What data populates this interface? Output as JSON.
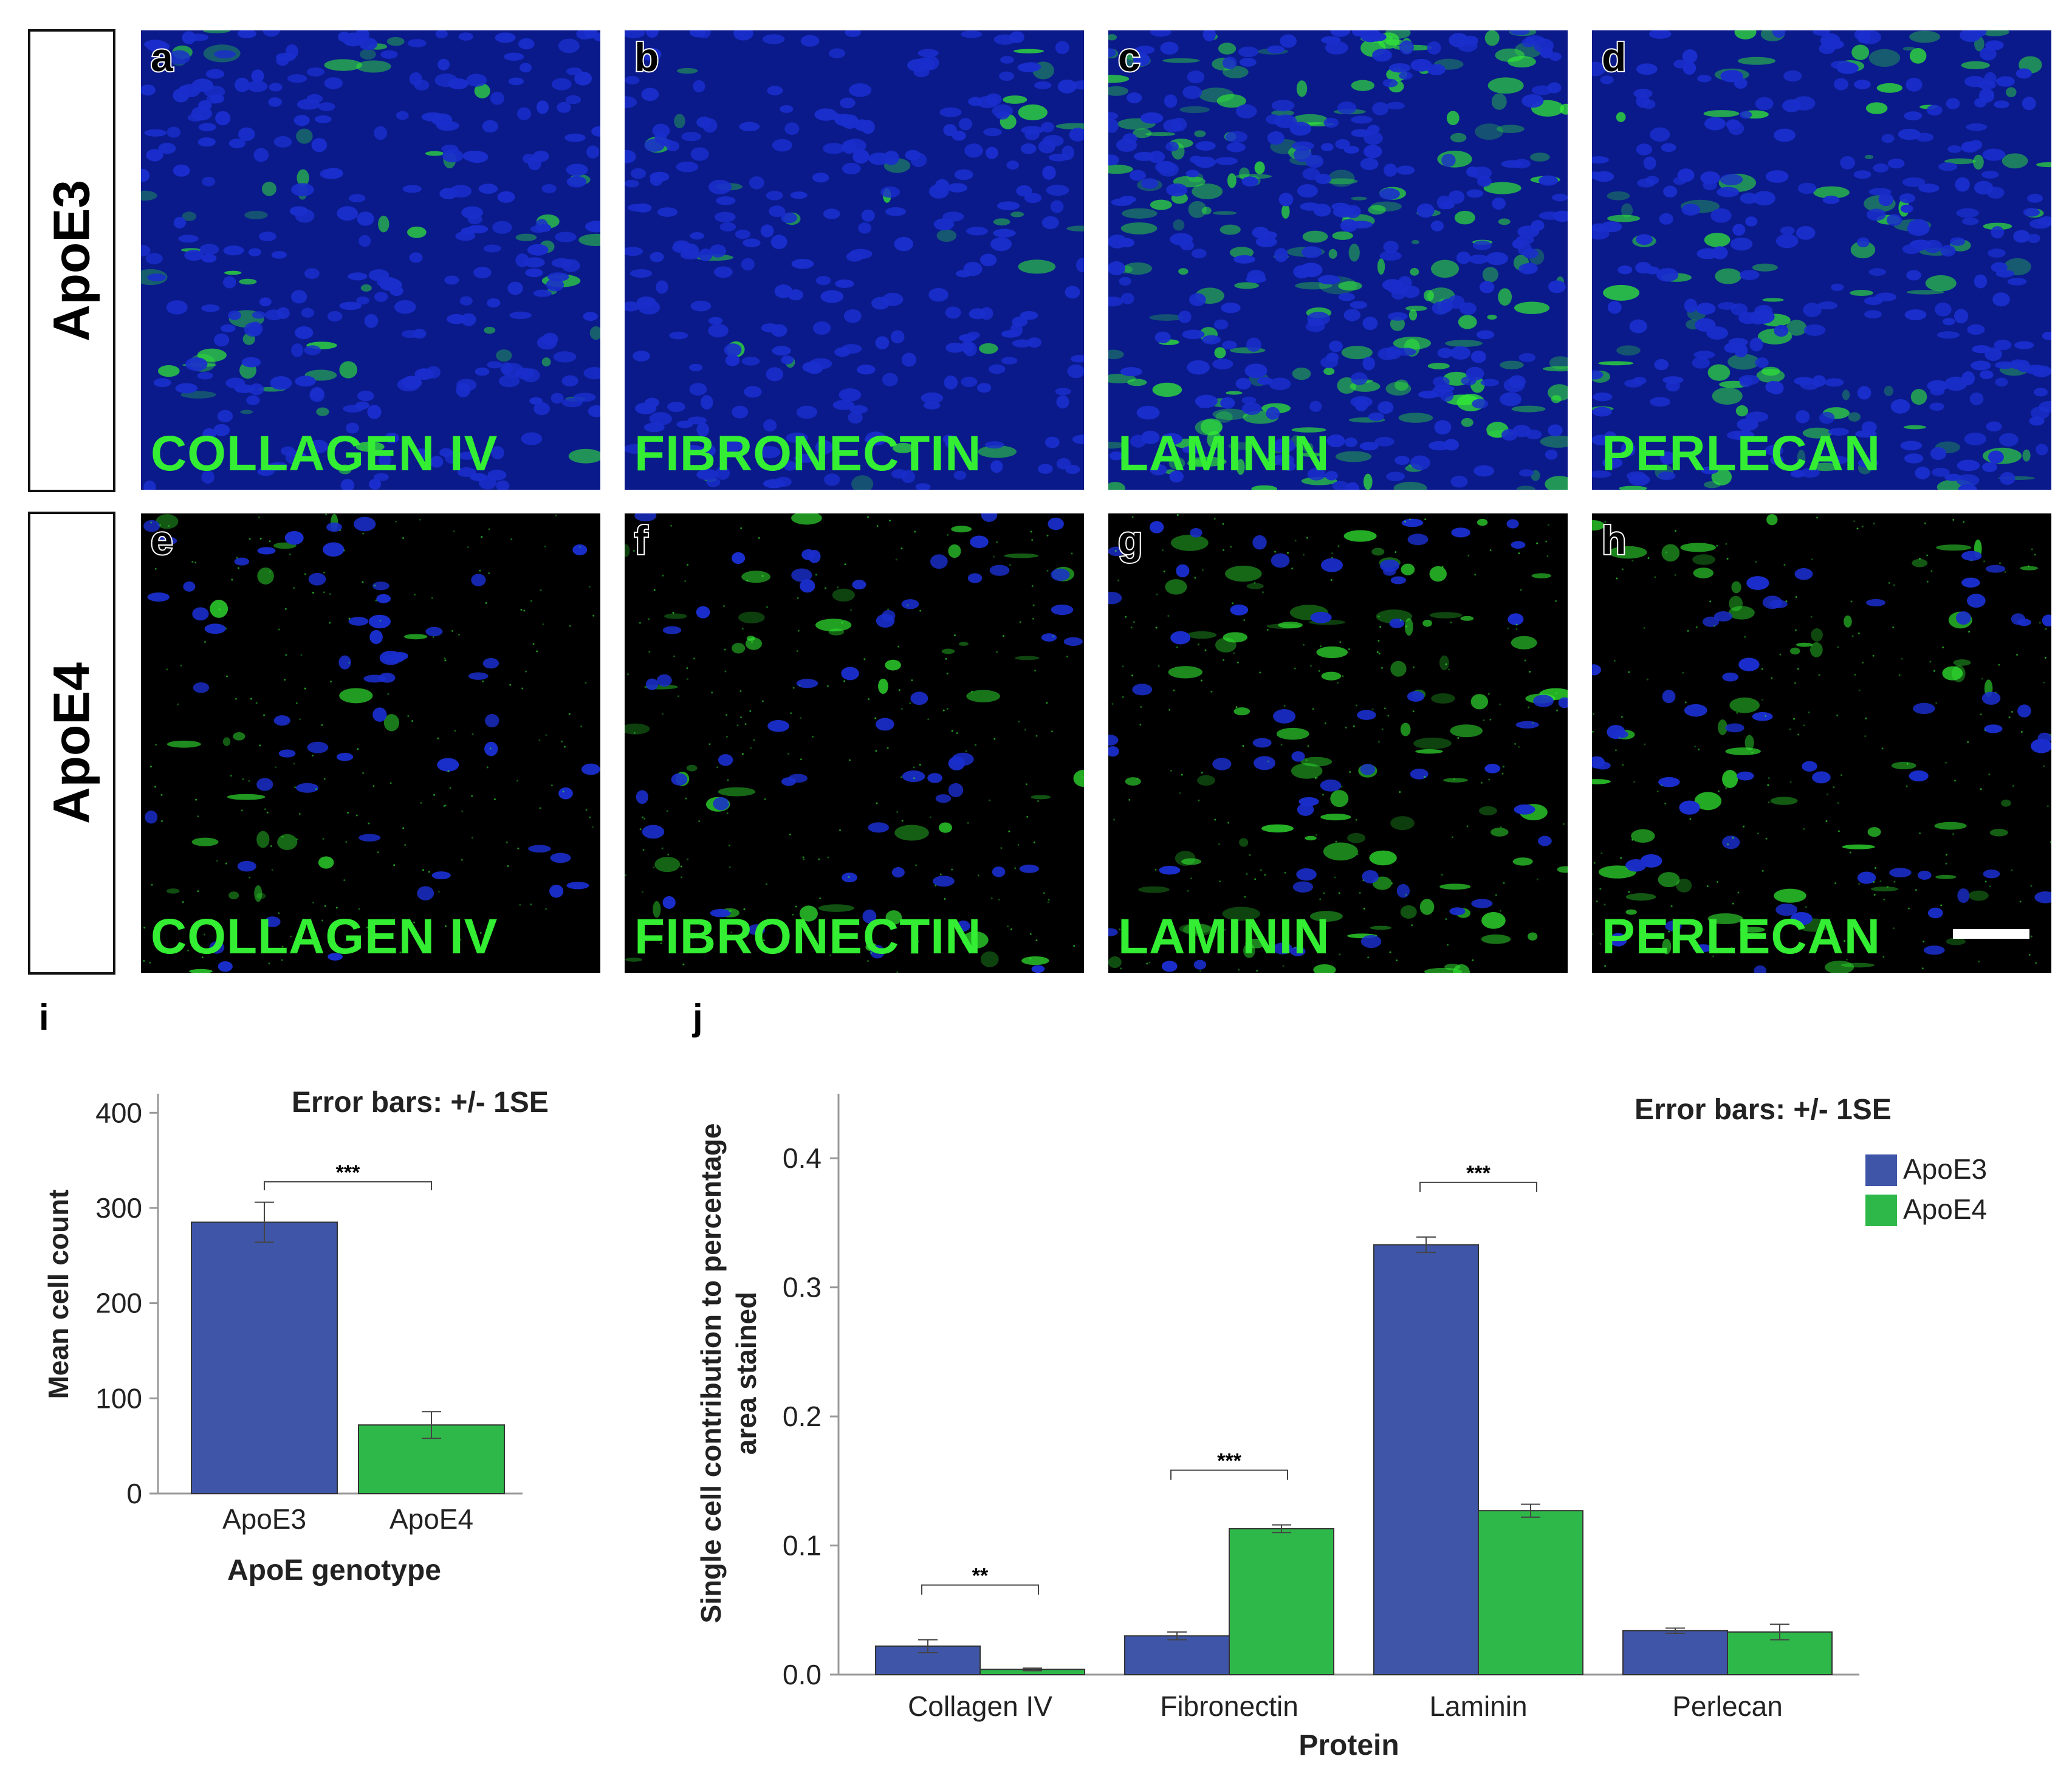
{
  "row_labels": [
    "ApoE3",
    "ApoE4"
  ],
  "panels": [
    {
      "letter": "a",
      "stain": "COLLAGEN IV",
      "genotype": "ApoE3"
    },
    {
      "letter": "b",
      "stain": "FIBRONECTIN",
      "genotype": "ApoE3"
    },
    {
      "letter": "c",
      "stain": "LAMININ",
      "genotype": "ApoE3"
    },
    {
      "letter": "d",
      "stain": "PERLECAN",
      "genotype": "ApoE3"
    },
    {
      "letter": "e",
      "stain": "COLLAGEN IV",
      "genotype": "ApoE4"
    },
    {
      "letter": "f",
      "stain": "FIBRONECTIN",
      "genotype": "ApoE4"
    },
    {
      "letter": "g",
      "stain": "LAMININ",
      "genotype": "ApoE4"
    },
    {
      "letter": "h",
      "stain": "PERLECAN",
      "genotype": "ApoE4"
    }
  ],
  "sublabels": {
    "i": "i",
    "j": "j"
  },
  "colors": {
    "apoe3": "#3f56a8",
    "apoe4": "#2fb84a",
    "stain_green": "#33ee33",
    "nuclei_blue": "#1a2ecc"
  },
  "chart_data": [
    {
      "type": "bar",
      "panel": "i",
      "categories": [
        "ApoE3",
        "ApoE4"
      ],
      "values": [
        285,
        72
      ],
      "errors": [
        21,
        14
      ],
      "annotation": "Error bars: +/- 1SE",
      "significance": [
        {
          "between": [
            "ApoE3",
            "ApoE4"
          ],
          "label": "***"
        }
      ],
      "xlabel": "ApoE genotype",
      "ylabel": "Mean cell count",
      "ylim": [
        0,
        420
      ],
      "yticks": [
        0,
        100,
        200,
        300,
        400
      ],
      "grid": false
    },
    {
      "type": "bar",
      "panel": "j",
      "categories": [
        "Collagen IV",
        "Fibronectin",
        "Laminin",
        "Perlecan"
      ],
      "series": [
        {
          "name": "ApoE3",
          "values": [
            0.022,
            0.03,
            0.333,
            0.034
          ],
          "errors": [
            0.005,
            0.003,
            0.006,
            0.002
          ]
        },
        {
          "name": "ApoE4",
          "values": [
            0.004,
            0.113,
            0.127,
            0.033
          ],
          "errors": [
            0.001,
            0.003,
            0.005,
            0.006
          ]
        }
      ],
      "significance": [
        {
          "category": "Collagen IV",
          "label": "**"
        },
        {
          "category": "Fibronectin",
          "label": "***"
        },
        {
          "category": "Laminin",
          "label": "***"
        }
      ],
      "annotation": "Error bars: +/- 1SE",
      "xlabel": "Protein",
      "ylabel_lines": [
        "Single cell contribution to percentage",
        "area stained"
      ],
      "ylim": [
        0,
        0.45
      ],
      "yticks": [
        "0.0",
        "0.1",
        "0.2",
        "0.3",
        "0.4"
      ],
      "legend": "top-right",
      "grid": false
    }
  ]
}
